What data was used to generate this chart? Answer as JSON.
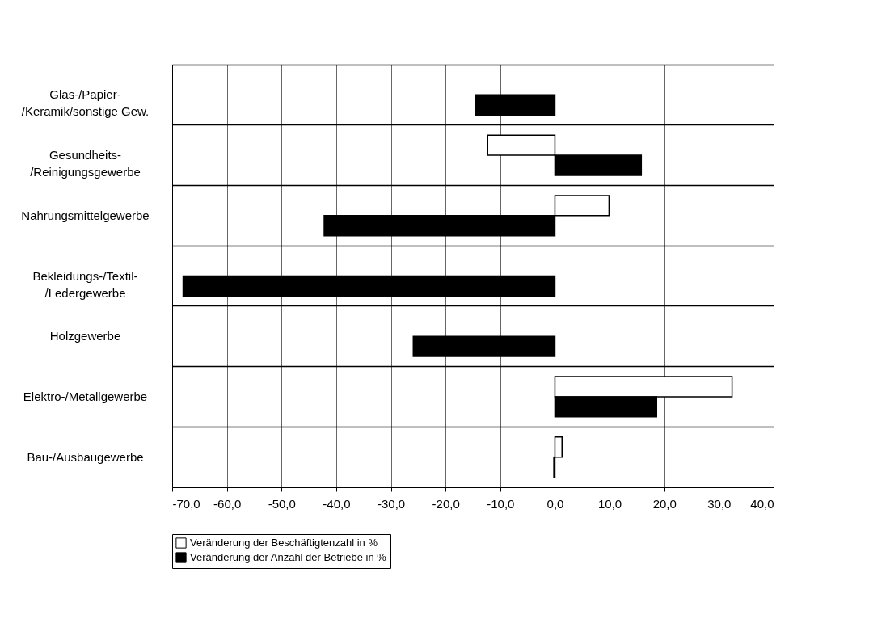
{
  "chart_data": {
    "type": "bar",
    "orientation": "horizontal",
    "categories": [
      "Glas-/Papier-\n/Keramik/sonstige Gew.",
      "Gesundheits-\n/Reinigungsgewerbe",
      "Nahrungsmittelgewerbe",
      "Bekleidungs-/Textil-\n/Ledergewerbe",
      "Holzgewerbe",
      "Elektro-/Metallgewerbe",
      "Bau-/Ausbaugewerbe"
    ],
    "series": [
      {
        "name": "Veränderung der Beschäftigtenzahl in %",
        "color": "#ffffff",
        "values": [
          null,
          -12.3,
          9.9,
          null,
          null,
          32.4,
          1.3
        ]
      },
      {
        "name": "Veränderung der Anzahl der Betriebe in %",
        "color": "#000000",
        "values": [
          -14.5,
          15.8,
          -42.2,
          -68.0,
          -25.9,
          18.6,
          -0.2
        ]
      }
    ],
    "xlim": [
      -70,
      40
    ],
    "xticks": [
      {
        "value": -70,
        "label": "-70,0"
      },
      {
        "value": -60,
        "label": "-60,0"
      },
      {
        "value": -50,
        "label": "-50,0"
      },
      {
        "value": -40,
        "label": "-40,0"
      },
      {
        "value": -30,
        "label": "-30,0"
      },
      {
        "value": -20,
        "label": "-20,0"
      },
      {
        "value": -10,
        "label": "-10,0"
      },
      {
        "value": 0,
        "label": "0,0"
      },
      {
        "value": 10,
        "label": "10,0"
      },
      {
        "value": 20,
        "label": "20,0"
      },
      {
        "value": 30,
        "label": "30,0"
      },
      {
        "value": 40,
        "label": "40,0"
      }
    ],
    "grid": true,
    "legend": "bottom"
  }
}
